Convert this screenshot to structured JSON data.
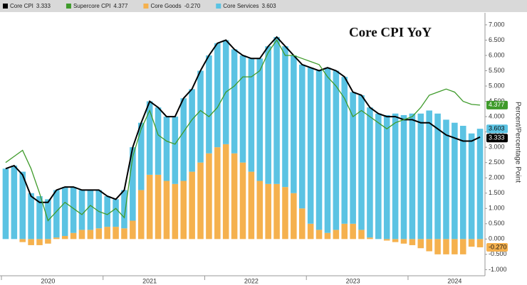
{
  "chart_data": {
    "type": "bar",
    "title": "Core CPI YoY",
    "y_label": "Percent/Percentage Point",
    "categories": [
      null,
      null,
      null,
      null,
      null,
      "2020",
      null,
      null,
      null,
      null,
      null,
      null,
      null,
      null,
      null,
      null,
      null,
      "2021",
      null,
      null,
      null,
      null,
      null,
      null,
      null,
      null,
      null,
      null,
      null,
      "2022",
      null,
      null,
      null,
      null,
      null,
      null,
      null,
      null,
      null,
      null,
      null,
      "2023",
      null,
      null,
      null,
      null,
      null,
      null,
      null,
      null,
      null,
      null,
      null,
      "2024",
      null,
      null,
      null
    ],
    "series": [
      {
        "name": "Core CPI",
        "color": "#000000",
        "kind": "line",
        "values": [
          2.3,
          2.4,
          2.1,
          1.4,
          1.2,
          1.2,
          1.6,
          1.7,
          1.7,
          1.6,
          1.6,
          1.6,
          1.4,
          1.3,
          1.6,
          3.0,
          3.8,
          4.5,
          4.3,
          4.0,
          4.0,
          4.6,
          4.9,
          5.5,
          6.0,
          6.4,
          6.5,
          6.2,
          6.0,
          5.9,
          5.9,
          6.3,
          6.6,
          6.3,
          6.0,
          5.7,
          5.6,
          5.5,
          5.6,
          5.5,
          5.3,
          4.8,
          4.7,
          4.3,
          4.1,
          4.0,
          4.0,
          3.9,
          3.9,
          3.8,
          3.8,
          3.6,
          3.4,
          3.3,
          3.2,
          3.2,
          3.333
        ]
      },
      {
        "name": "Supercore CPI",
        "color": "#3f9b2b",
        "kind": "line",
        "values": [
          2.5,
          2.7,
          2.9,
          2.3,
          1.5,
          0.6,
          0.9,
          1.2,
          1.0,
          0.8,
          1.1,
          0.9,
          0.8,
          1.0,
          0.7,
          2.7,
          3.6,
          4.2,
          3.4,
          3.2,
          3.1,
          3.5,
          3.9,
          4.2,
          4.0,
          4.3,
          4.8,
          5.0,
          5.3,
          5.3,
          5.5,
          6.1,
          6.5,
          6.0,
          6.0,
          5.9,
          5.8,
          5.7,
          5.3,
          5.0,
          4.6,
          4.0,
          4.2,
          4.0,
          3.8,
          3.6,
          3.8,
          3.9,
          4.0,
          4.3,
          4.7,
          4.8,
          4.9,
          4.8,
          4.5,
          4.4,
          4.377
        ]
      },
      {
        "name": "Core Goods",
        "color": "#f5b14e",
        "kind": "bar",
        "values": [
          0.0,
          0.0,
          -0.1,
          -0.2,
          -0.2,
          -0.15,
          0.05,
          0.1,
          0.2,
          0.3,
          0.3,
          0.35,
          0.4,
          0.4,
          0.35,
          0.6,
          1.6,
          2.1,
          2.1,
          1.9,
          1.8,
          1.9,
          2.2,
          2.5,
          2.8,
          3.0,
          3.1,
          2.8,
          2.5,
          2.2,
          1.9,
          1.8,
          1.8,
          1.7,
          1.5,
          1.0,
          0.5,
          0.3,
          0.2,
          0.3,
          0.5,
          0.5,
          0.3,
          0.05,
          0.0,
          -0.05,
          -0.1,
          -0.15,
          -0.2,
          -0.3,
          -0.4,
          -0.5,
          -0.5,
          -0.5,
          -0.5,
          -0.25,
          -0.27
        ],
        "value_labels": [
          null,
          null,
          null,
          null,
          null,
          null,
          null,
          null,
          null,
          null,
          null,
          null,
          null,
          null,
          null,
          null,
          null,
          null,
          null,
          null,
          null,
          null,
          null,
          null,
          null,
          null,
          null,
          null,
          null,
          null,
          null,
          null,
          null,
          null,
          null,
          null,
          null,
          null,
          null,
          null,
          null,
          null,
          null,
          null,
          null,
          null,
          null,
          null,
          null,
          null,
          null,
          null,
          null,
          null,
          null,
          null,
          "-0.270"
        ]
      },
      {
        "name": "Core Services",
        "color": "#5bc3e3",
        "kind": "bar",
        "values": [
          2.3,
          2.4,
          2.2,
          1.5,
          1.4,
          1.3,
          1.55,
          1.6,
          1.5,
          1.3,
          1.3,
          1.25,
          1.0,
          0.9,
          1.25,
          2.4,
          2.2,
          2.4,
          2.2,
          2.1,
          2.2,
          2.7,
          2.7,
          3.0,
          3.2,
          3.4,
          3.4,
          3.4,
          3.5,
          3.7,
          4.0,
          4.5,
          4.8,
          4.6,
          4.5,
          4.7,
          5.1,
          5.2,
          5.4,
          5.2,
          4.8,
          4.3,
          4.4,
          4.25,
          4.1,
          4.05,
          4.1,
          4.05,
          4.1,
          4.1,
          4.2,
          4.1,
          3.9,
          3.8,
          3.7,
          3.45,
          3.603
        ]
      }
    ],
    "ylim": [
      -1.2,
      7.3
    ],
    "yticks": [
      {
        "value": -1,
        "label": "-1.000"
      },
      {
        "value": -0.5,
        "label": "-0.500"
      },
      {
        "value": 0,
        "label": "0.000"
      },
      {
        "value": 0.5,
        "label": "0.500"
      },
      {
        "value": 1,
        "label": "1.000"
      },
      {
        "value": 1.5,
        "label": "1.500"
      },
      {
        "value": 2,
        "label": "2.000"
      },
      {
        "value": 2.5,
        "label": "2.500"
      },
      {
        "value": 3,
        "label": "3.000"
      },
      {
        "value": 3.5,
        "label": "3.500"
      },
      {
        "value": 4,
        "label": "4.000"
      },
      {
        "value": 4.5,
        "label": "4.500"
      },
      {
        "value": 5,
        "label": "5.000"
      },
      {
        "value": 5.5,
        "label": "5.500"
      },
      {
        "value": 6,
        "label": "6.000"
      },
      {
        "value": 6.5,
        "label": "6.500"
      },
      {
        "value": 7,
        "label": "7.000"
      }
    ],
    "grid": false
  }
}
